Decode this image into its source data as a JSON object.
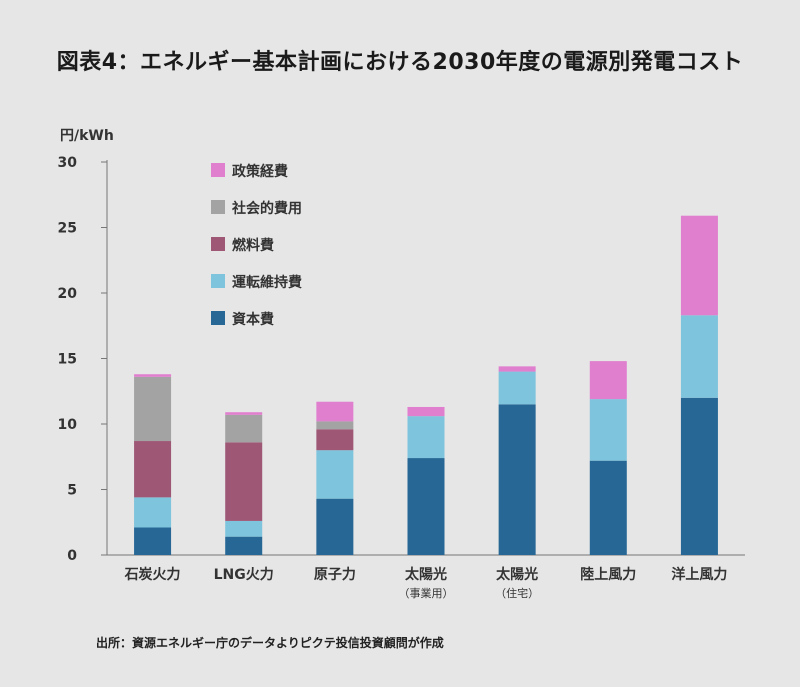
{
  "chart_data": {
    "type": "bar",
    "stacked": true,
    "title": "図表4：エネルギー基本計画における2030年度の電源別発電コスト",
    "ylabel": "円/kWh",
    "ylim": [
      0,
      30
    ],
    "yticks": [
      0,
      5,
      10,
      15,
      20,
      25,
      30
    ],
    "grid": false,
    "legend_position": "top-left",
    "categories": [
      "石炭火力",
      "LNG火力",
      "原子力",
      "太陽光",
      "太陽光",
      "陸上風力",
      "洋上風力"
    ],
    "category_sublabels": [
      "",
      "",
      "",
      "（事業用）",
      "（住宅）",
      "",
      ""
    ],
    "series": [
      {
        "name": "資本費",
        "color": "#266796",
        "values": [
          2.1,
          1.4,
          4.3,
          7.4,
          11.5,
          7.2,
          12.0
        ]
      },
      {
        "name": "運転維持費",
        "color": "#7ec4dc",
        "values": [
          2.3,
          1.2,
          3.7,
          3.2,
          2.5,
          4.7,
          6.3
        ]
      },
      {
        "name": "燃料費",
        "color": "#9e5876",
        "values": [
          4.3,
          6.0,
          1.6,
          0.0,
          0.0,
          0.0,
          0.0
        ]
      },
      {
        "name": "社会的費用",
        "color": "#a3a3a3",
        "values": [
          4.9,
          2.1,
          0.6,
          0.0,
          0.0,
          0.0,
          0.0
        ]
      },
      {
        "name": "政策経費",
        "color": "#e07fce",
        "values": [
          0.2,
          0.2,
          1.5,
          0.7,
          0.4,
          2.9,
          7.6
        ]
      }
    ],
    "source": "出所：資源エネルギー庁のデータよりピクテ投信投資顧問が作成"
  }
}
